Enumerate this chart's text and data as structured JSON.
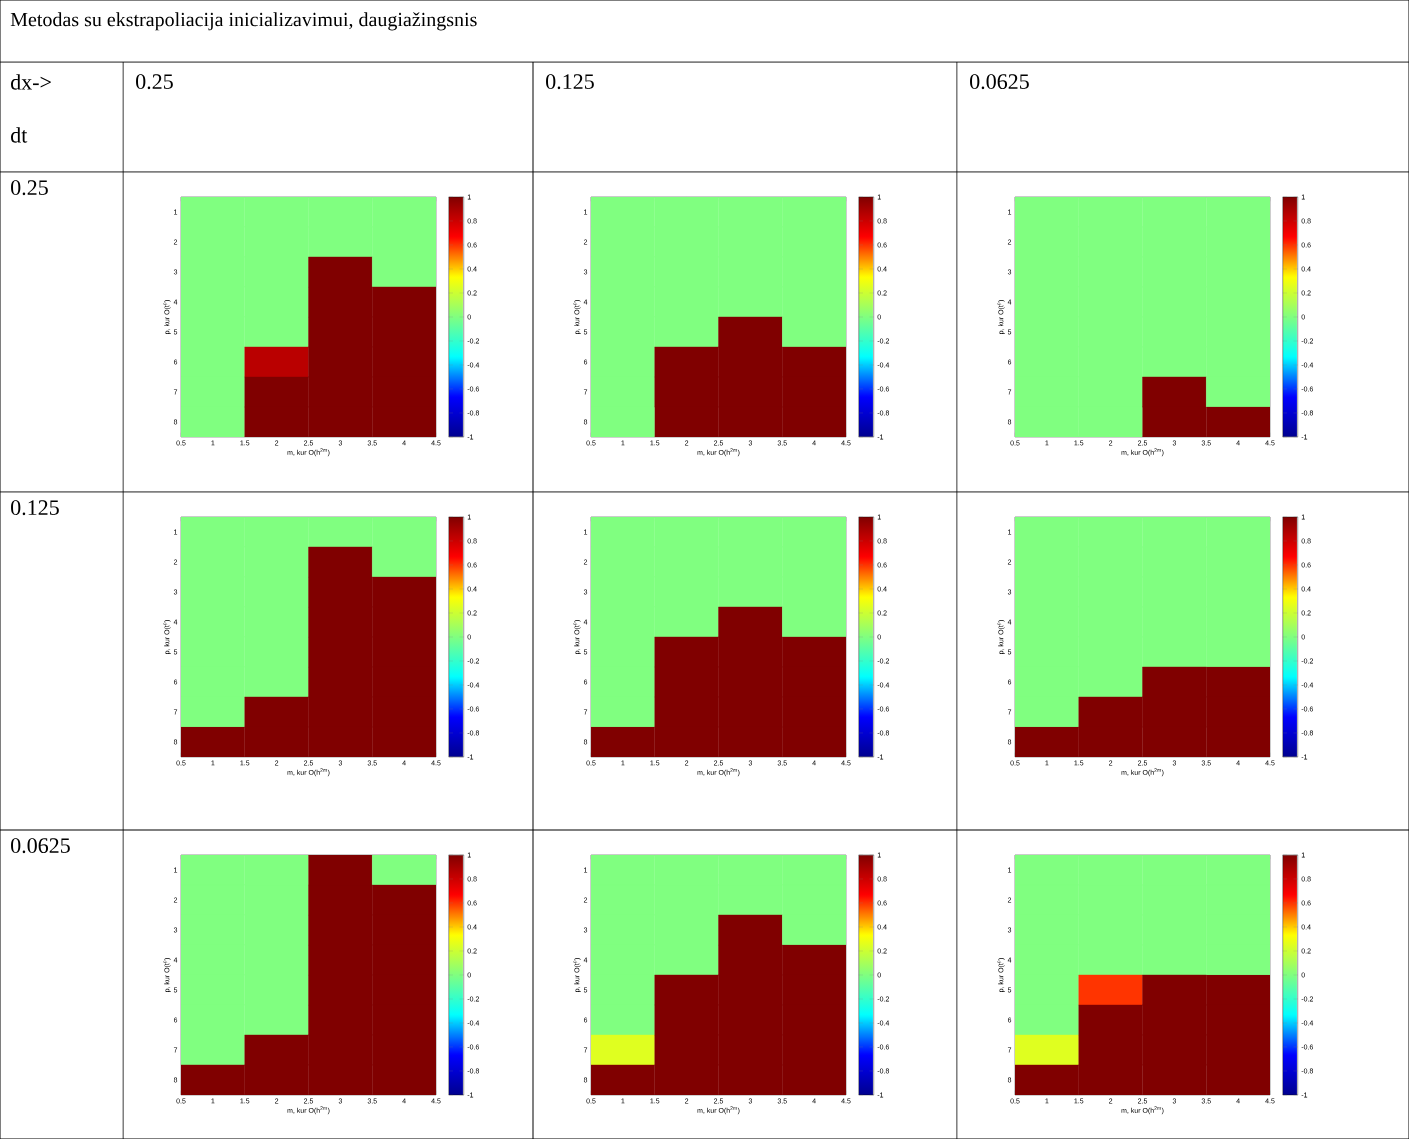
{
  "chart_data": [
    {
      "type": "other",
      "title": "Metodas su ekstrapoliacija inicializavimui, daugiažingsnis",
      "annotations": [
        "dx->",
        "dt",
        "0.25",
        "0.125",
        "0.0625",
        "0.25",
        "0.125",
        "0.0625"
      ]
    },
    {
      "type": "heatmap",
      "x": [
        1,
        2,
        3,
        4
      ],
      "xlim": [
        0.5,
        4.5
      ],
      "xticks": [
        0.5,
        1,
        1.5,
        2,
        2.5,
        3,
        3.5,
        4,
        4.5
      ],
      "y_categories": [
        "1",
        "2",
        "3",
        "4",
        "5",
        "6",
        "7",
        "8"
      ],
      "xlabel": "m, kur O(h$^{2m}$)",
      "ylabel": "p, kur O(t$^{p}$)",
      "clim": [
        -1,
        1
      ],
      "cticks": [
        -1,
        -0.8,
        -0.6,
        -0.4,
        -0.2,
        0,
        0.2,
        0.4,
        0.6,
        0.8,
        1
      ],
      "cells": [
        [
          0,
          0,
          0,
          0
        ],
        [
          0,
          0,
          0,
          0
        ],
        [
          0,
          0,
          1,
          0
        ],
        [
          0,
          0,
          1,
          1
        ],
        [
          0,
          0,
          1,
          1
        ],
        [
          0,
          0.85,
          1,
          1
        ],
        [
          0,
          1,
          1,
          1
        ],
        [
          0,
          1,
          1,
          1
        ]
      ]
    },
    {
      "type": "heatmap",
      "x": [
        1,
        2,
        3,
        4
      ],
      "xlim": [
        0.5,
        4.5
      ],
      "xticks": [
        0.5,
        1,
        1.5,
        2,
        2.5,
        3,
        3.5,
        4,
        4.5
      ],
      "y_categories": [
        "1",
        "2",
        "3",
        "4",
        "5",
        "6",
        "7",
        "8"
      ],
      "xlabel": "m, kur O(h$^{2m}$)",
      "ylabel": "p, kur O(t$^{p}$)",
      "clim": [
        -1,
        1
      ],
      "cticks": [
        -1,
        -0.8,
        -0.6,
        -0.4,
        -0.2,
        0,
        0.2,
        0.4,
        0.6,
        0.8,
        1
      ],
      "cells": [
        [
          0,
          0,
          0,
          0
        ],
        [
          0,
          0,
          0,
          0
        ],
        [
          0,
          0,
          0,
          0
        ],
        [
          0,
          0,
          0,
          0
        ],
        [
          0,
          0,
          1,
          0
        ],
        [
          0,
          1,
          1,
          1
        ],
        [
          0,
          1,
          1,
          1
        ],
        [
          0,
          1,
          1,
          1
        ]
      ]
    },
    {
      "type": "heatmap",
      "x": [
        1,
        2,
        3,
        4
      ],
      "xlim": [
        0.5,
        4.5
      ],
      "xticks": [
        0.5,
        1,
        1.5,
        2,
        2.5,
        3,
        3.5,
        4,
        4.5
      ],
      "y_categories": [
        "1",
        "2",
        "3",
        "4",
        "5",
        "6",
        "7",
        "8"
      ],
      "xlabel": "m, kur O(h$^{2m}$)",
      "ylabel": "p, kur O(t$^{p}$)",
      "clim": [
        -1,
        1
      ],
      "cticks": [
        -1,
        -0.8,
        -0.6,
        -0.4,
        -0.2,
        0,
        0.2,
        0.4,
        0.6,
        0.8,
        1
      ],
      "cells": [
        [
          0,
          0,
          0,
          0
        ],
        [
          0,
          0,
          0,
          0
        ],
        [
          0,
          0,
          0,
          0
        ],
        [
          0,
          0,
          0,
          0
        ],
        [
          0,
          0,
          0,
          0
        ],
        [
          0,
          0,
          0,
          0
        ],
        [
          0,
          0,
          1,
          0
        ],
        [
          0,
          0,
          1,
          1
        ]
      ]
    },
    {
      "type": "heatmap",
      "x": [
        1,
        2,
        3,
        4
      ],
      "xlim": [
        0.5,
        4.5
      ],
      "xticks": [
        0.5,
        1,
        1.5,
        2,
        2.5,
        3,
        3.5,
        4,
        4.5
      ],
      "y_categories": [
        "1",
        "2",
        "3",
        "4",
        "5",
        "6",
        "7",
        "8"
      ],
      "xlabel": "m, kur O(h$^{2m}$)",
      "ylabel": "p, kur O(t$^{p}$)",
      "clim": [
        -1,
        1
      ],
      "cticks": [
        -1,
        -0.8,
        -0.6,
        -0.4,
        -0.2,
        0,
        0.2,
        0.4,
        0.6,
        0.8,
        1
      ],
      "cells": [
        [
          0,
          0,
          0,
          0
        ],
        [
          0,
          0,
          1,
          0
        ],
        [
          0,
          0,
          1,
          1
        ],
        [
          0,
          0,
          1,
          1
        ],
        [
          0,
          0,
          1,
          1
        ],
        [
          0,
          0,
          1,
          1
        ],
        [
          0,
          1,
          1,
          1
        ],
        [
          1,
          1,
          1,
          1
        ]
      ]
    },
    {
      "type": "heatmap",
      "x": [
        1,
        2,
        3,
        4
      ],
      "xlim": [
        0.5,
        4.5
      ],
      "xticks": [
        0.5,
        1,
        1.5,
        2,
        2.5,
        3,
        3.5,
        4,
        4.5
      ],
      "y_categories": [
        "1",
        "2",
        "3",
        "4",
        "5",
        "6",
        "7",
        "8"
      ],
      "xlabel": "m, kur O(h$^{2m}$)",
      "ylabel": "p, kur O(t$^{p}$)",
      "clim": [
        -1,
        1
      ],
      "cticks": [
        -1,
        -0.8,
        -0.6,
        -0.4,
        -0.2,
        0,
        0.2,
        0.4,
        0.6,
        0.8,
        1
      ],
      "cells": [
        [
          0,
          0,
          0,
          0
        ],
        [
          0,
          0,
          0,
          0
        ],
        [
          0,
          0,
          0,
          0
        ],
        [
          0,
          0,
          1,
          0
        ],
        [
          0,
          1,
          1,
          1
        ],
        [
          0,
          1,
          1,
          1
        ],
        [
          0,
          1,
          1,
          1
        ],
        [
          1,
          1,
          1,
          1
        ]
      ]
    },
    {
      "type": "heatmap",
      "x": [
        1,
        2,
        3,
        4
      ],
      "xlim": [
        0.5,
        4.5
      ],
      "xticks": [
        0.5,
        1,
        1.5,
        2,
        2.5,
        3,
        3.5,
        4,
        4.5
      ],
      "y_categories": [
        "1",
        "2",
        "3",
        "4",
        "5",
        "6",
        "7",
        "8"
      ],
      "xlabel": "m, kur O(h$^{2m}$)",
      "ylabel": "p, kur O(t$^{p}$)",
      "clim": [
        -1,
        1
      ],
      "cticks": [
        -1,
        -0.8,
        -0.6,
        -0.4,
        -0.2,
        0,
        0.2,
        0.4,
        0.6,
        0.8,
        1
      ],
      "cells": [
        [
          0,
          0,
          0,
          0
        ],
        [
          0,
          0,
          0,
          0
        ],
        [
          0,
          0,
          0,
          0
        ],
        [
          0,
          0,
          0,
          0
        ],
        [
          0,
          0,
          0,
          0
        ],
        [
          0,
          0,
          1,
          1
        ],
        [
          0,
          1,
          1,
          1
        ],
        [
          1,
          1,
          1,
          1
        ]
      ]
    },
    {
      "type": "heatmap",
      "x": [
        1,
        2,
        3,
        4
      ],
      "xlim": [
        0.5,
        4.5
      ],
      "xticks": [
        0.5,
        1,
        1.5,
        2,
        2.5,
        3,
        3.5,
        4,
        4.5
      ],
      "y_categories": [
        "1",
        "2",
        "3",
        "4",
        "5",
        "6",
        "7",
        "8"
      ],
      "xlabel": "m, kur O(h$^{2m}$)",
      "ylabel": "p, kur O(t$^{p}$)",
      "clim": [
        -1,
        1
      ],
      "cticks": [
        -1,
        -0.8,
        -0.6,
        -0.4,
        -0.2,
        0,
        0.2,
        0.4,
        0.6,
        0.8,
        1
      ],
      "cells": [
        [
          0,
          0,
          1,
          0
        ],
        [
          0,
          0,
          1,
          1
        ],
        [
          0,
          0,
          1,
          1
        ],
        [
          0,
          0,
          1,
          1
        ],
        [
          0,
          0,
          1,
          1
        ],
        [
          0,
          0,
          1,
          1
        ],
        [
          0,
          1,
          1,
          1
        ],
        [
          1,
          1,
          1,
          1
        ]
      ]
    },
    {
      "type": "heatmap",
      "x": [
        1,
        2,
        3,
        4
      ],
      "xlim": [
        0.5,
        4.5
      ],
      "xticks": [
        0.5,
        1,
        1.5,
        2,
        2.5,
        3,
        3.5,
        4,
        4.5
      ],
      "y_categories": [
        "1",
        "2",
        "3",
        "4",
        "5",
        "6",
        "7",
        "8"
      ],
      "xlabel": "m, kur O(h$^{2m}$)",
      "ylabel": "p, kur O(t$^{p}$)",
      "clim": [
        -1,
        1
      ],
      "cticks": [
        -1,
        -0.8,
        -0.6,
        -0.4,
        -0.2,
        0,
        0.2,
        0.4,
        0.6,
        0.8,
        1
      ],
      "cells": [
        [
          0,
          0,
          0,
          0
        ],
        [
          0,
          0,
          0,
          0
        ],
        [
          0,
          0,
          1,
          0
        ],
        [
          0,
          0,
          1,
          1
        ],
        [
          0,
          1,
          1,
          1
        ],
        [
          0,
          1,
          1,
          1
        ],
        [
          0.25,
          1,
          1,
          1
        ],
        [
          1,
          1,
          1,
          1
        ]
      ]
    },
    {
      "type": "heatmap",
      "x": [
        1,
        2,
        3,
        4
      ],
      "xlim": [
        0.5,
        4.5
      ],
      "xticks": [
        0.5,
        1,
        1.5,
        2,
        2.5,
        3,
        3.5,
        4,
        4.5
      ],
      "y_categories": [
        "1",
        "2",
        "3",
        "4",
        "5",
        "6",
        "7",
        "8"
      ],
      "xlabel": "m, kur O(h$^{2m}$)",
      "ylabel": "p, kur O(t$^{p}$)",
      "clim": [
        -1,
        1
      ],
      "cticks": [
        -1,
        -0.8,
        -0.6,
        -0.4,
        -0.2,
        0,
        0.2,
        0.4,
        0.6,
        0.8,
        1
      ],
      "cells": [
        [
          0,
          0,
          0,
          0
        ],
        [
          0,
          0,
          0,
          0
        ],
        [
          0,
          0,
          0,
          0
        ],
        [
          0,
          0,
          0,
          0
        ],
        [
          0,
          0.6,
          1,
          1
        ],
        [
          0,
          1,
          1,
          1
        ],
        [
          0.25,
          1,
          1,
          1
        ],
        [
          1,
          1,
          1,
          1
        ]
      ]
    }
  ]
}
